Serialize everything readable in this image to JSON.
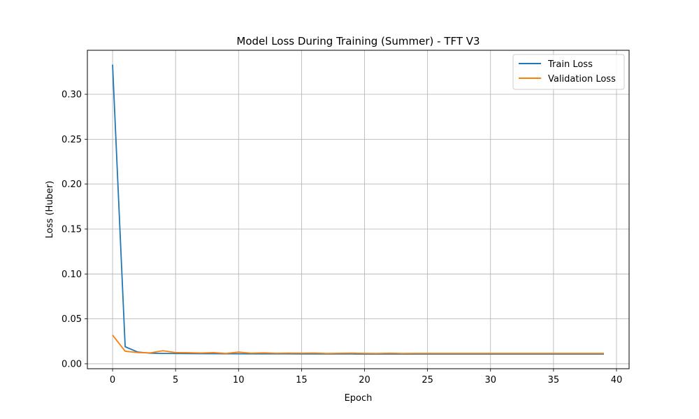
{
  "chart_data": {
    "type": "line",
    "title": "Model Loss During Training (Summer) - TFT V3",
    "xlabel": "Epoch",
    "ylabel": "Loss (Huber)",
    "xlim": [
      -2,
      41
    ],
    "ylim": [
      -0.0055,
      0.349
    ],
    "xticks": [
      0,
      5,
      10,
      15,
      20,
      25,
      30,
      35,
      40
    ],
    "yticks": [
      0.0,
      0.05,
      0.1,
      0.15,
      0.2,
      0.25,
      0.3
    ],
    "ytick_labels": [
      "0.00",
      "0.05",
      "0.10",
      "0.15",
      "0.20",
      "0.25",
      "0.30"
    ],
    "grid": true,
    "legend_position": "upper right",
    "x": [
      0,
      1,
      2,
      3,
      4,
      5,
      6,
      7,
      8,
      9,
      10,
      11,
      12,
      13,
      14,
      15,
      16,
      17,
      18,
      19,
      20,
      21,
      22,
      23,
      24,
      25,
      26,
      27,
      28,
      29,
      30,
      31,
      32,
      33,
      34,
      35,
      36,
      37,
      38,
      39
    ],
    "series": [
      {
        "name": "Train Loss",
        "color": "#1f77b4",
        "values": [
          0.333,
          0.019,
          0.013,
          0.0118,
          0.0115,
          0.0114,
          0.0113,
          0.0112,
          0.0112,
          0.0111,
          0.0111,
          0.011,
          0.011,
          0.011,
          0.011,
          0.0109,
          0.0109,
          0.0109,
          0.0109,
          0.0109,
          0.0108,
          0.0108,
          0.0108,
          0.0108,
          0.0108,
          0.0108,
          0.0108,
          0.0108,
          0.0108,
          0.0108,
          0.0108,
          0.0108,
          0.0108,
          0.0108,
          0.0108,
          0.0108,
          0.0108,
          0.0108,
          0.0108,
          0.0108
        ]
      },
      {
        "name": "Validation Loss",
        "color": "#ff7f0e",
        "values": [
          0.032,
          0.014,
          0.0125,
          0.0122,
          0.0145,
          0.0125,
          0.0124,
          0.012,
          0.0125,
          0.0115,
          0.013,
          0.0118,
          0.0122,
          0.0117,
          0.0119,
          0.0118,
          0.012,
          0.0115,
          0.0117,
          0.0119,
          0.0116,
          0.0115,
          0.0118,
          0.0115,
          0.0116,
          0.0116,
          0.0116,
          0.0116,
          0.0116,
          0.0116,
          0.0116,
          0.0116,
          0.0116,
          0.0116,
          0.0116,
          0.0116,
          0.0116,
          0.0116,
          0.0116,
          0.0116
        ]
      }
    ]
  }
}
